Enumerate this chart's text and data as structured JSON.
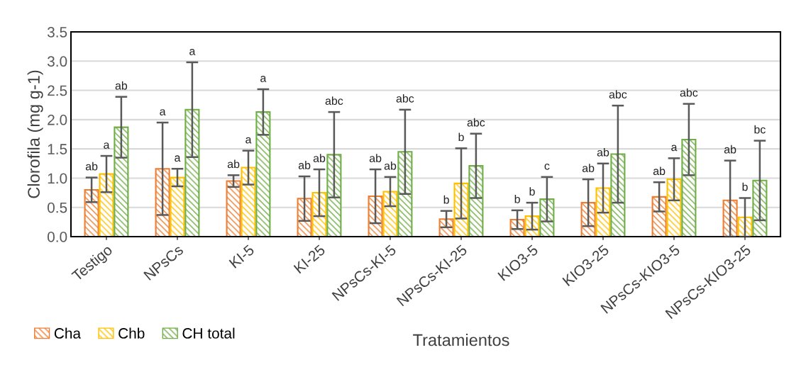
{
  "chart_data": {
    "type": "bar",
    "xlabel": "Tratamientos",
    "ylabel": "Clorofila (mg g-1)",
    "categories": [
      "Testigo",
      "NPsCs",
      "KI-5",
      "KI-25",
      "NPsCs-KI-5",
      "NPsCs-KI-25",
      "KIO3-5",
      "KIO3-25",
      "NPsCs-KIO3-5",
      "NPsCs-KIO3-25"
    ],
    "series": [
      {
        "name": "Cha",
        "color": "#ed7d31",
        "values": [
          0.8,
          1.16,
          0.95,
          0.65,
          0.69,
          0.3,
          0.29,
          0.58,
          0.68,
          0.62
        ],
        "errors": [
          0.21,
          0.79,
          0.1,
          0.38,
          0.46,
          0.14,
          0.16,
          0.4,
          0.25,
          [
            0.0,
            1.3
          ]
        ]
      },
      {
        "name": "Chb",
        "color": "#ffc000",
        "values": [
          1.07,
          1.01,
          1.18,
          0.75,
          0.77,
          0.91,
          0.35,
          0.83,
          0.98,
          0.33
        ],
        "errors": [
          0.31,
          0.15,
          0.29,
          0.4,
          0.25,
          0.6,
          0.23,
          0.42,
          0.36,
          0.33
        ]
      },
      {
        "name": "CH total",
        "color": "#70ad47",
        "values": [
          1.87,
          2.17,
          2.13,
          1.4,
          1.45,
          1.21,
          0.64,
          1.41,
          1.66,
          0.96
        ],
        "errors": [
          0.52,
          0.81,
          0.39,
          0.73,
          0.72,
          0.55,
          0.38,
          0.83,
          0.61,
          0.68
        ]
      }
    ],
    "annotations": [
      "ab",
      "a",
      "ab",
      "a",
      "a",
      "a",
      "ab",
      "a",
      "a",
      "ab",
      "ab",
      "abc",
      "ab",
      "ab",
      "abc",
      "b",
      "b",
      "abc",
      "b",
      "b",
      "c",
      "ab",
      "ab",
      "abc",
      "ab",
      "a",
      "abc",
      "ab",
      "b",
      "bc"
    ],
    "ylim": [
      0,
      3.5
    ],
    "yticks": [
      {
        "value": 0,
        "label": "0.0"
      },
      {
        "value": 0.5,
        "label": "0.5"
      },
      {
        "value": 1,
        "label": "1.0"
      },
      {
        "value": 1.5,
        "label": "1.5"
      },
      {
        "value": 2,
        "label": "2.0"
      },
      {
        "value": 2.5,
        "label": "2.5"
      },
      {
        "value": 3,
        "label": "3.0"
      },
      {
        "value": 3.5,
        "label": "3.5"
      }
    ],
    "grid": "y",
    "legend": "bottom left"
  }
}
